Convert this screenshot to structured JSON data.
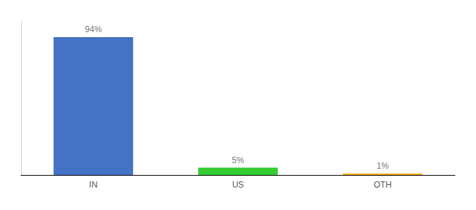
{
  "chart_data": {
    "type": "bar",
    "categories": [
      "IN",
      "US",
      "OTH"
    ],
    "values": [
      94,
      5,
      1
    ],
    "value_labels": [
      "94%",
      "5%",
      "1%"
    ],
    "colors": [
      "#4472C4",
      "#33CC33",
      "#F0A800"
    ],
    "ylim": [
      0,
      105
    ],
    "tick_labels": "x",
    "grid": false,
    "data_labels": true
  }
}
